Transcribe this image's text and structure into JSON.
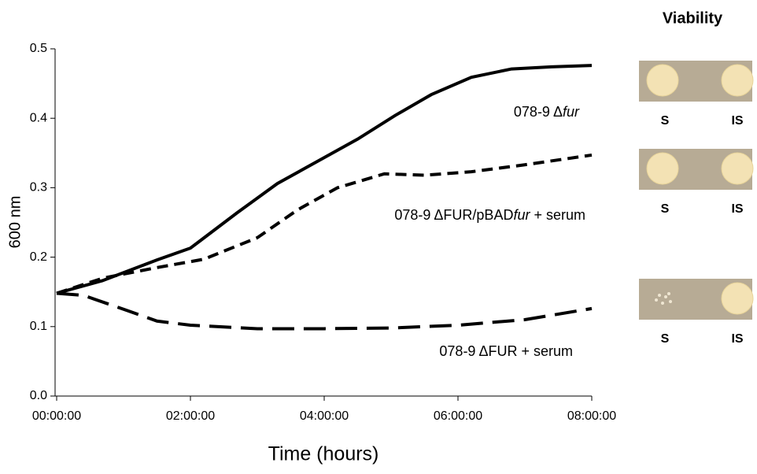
{
  "chart_data": {
    "type": "line",
    "xlabel": "Time (hours)",
    "ylabel": "600 nm",
    "xlim": [
      0,
      8
    ],
    "ylim": [
      0,
      0.5
    ],
    "xticks": [
      {
        "value": 0,
        "label": "00:00:00"
      },
      {
        "value": 2,
        "label": "02:00:00"
      },
      {
        "value": 4,
        "label": "04:00:00"
      },
      {
        "value": 6,
        "label": "06:00:00"
      },
      {
        "value": 8,
        "label": "08:00:00"
      }
    ],
    "yticks": [
      {
        "value": 0,
        "label": "0.0"
      },
      0.1,
      0.2,
      0.3,
      0.4,
      0.5
    ],
    "series": [
      {
        "label": [
          {
            "text": "078-9  Δ"
          },
          {
            "text": "fur",
            "italic": true
          }
        ],
        "color": "#000000",
        "dash": "solid",
        "x": [
          0,
          0.68,
          1.5,
          2.0,
          2.7,
          3.3,
          3.9,
          4.5,
          5.06,
          5.6,
          6.2,
          6.8,
          7.4,
          8
        ],
        "values": [
          0.148,
          0.166,
          0.196,
          0.213,
          0.264,
          0.306,
          0.338,
          0.37,
          0.404,
          0.434,
          0.459,
          0.471,
          0.474,
          0.476
        ]
      },
      {
        "label": [
          {
            "text": "078-9  ΔFUR/pBAD"
          },
          {
            "text": "fur",
            "italic": true
          },
          {
            "text": " + serum"
          }
        ],
        "color": "#000000",
        "dash": "short",
        "x": [
          0,
          0.7,
          1.5,
          2.2,
          3.0,
          3.6,
          4.2,
          4.9,
          5.5,
          6.2,
          7.0,
          8
        ],
        "values": [
          0.148,
          0.17,
          0.185,
          0.197,
          0.228,
          0.268,
          0.3,
          0.32,
          0.318,
          0.323,
          0.333,
          0.347
        ]
      },
      {
        "label": [
          {
            "text": "078-9  ΔFUR + serum"
          }
        ],
        "color": "#000000",
        "dash": "long",
        "x": [
          0,
          0.4,
          1.0,
          1.5,
          2.0,
          3.0,
          4.0,
          5.0,
          6.0,
          7.0,
          8
        ],
        "values": [
          0.148,
          0.145,
          0.125,
          0.108,
          0.102,
          0.097,
          0.097,
          0.098,
          0.102,
          0.11,
          0.126
        ]
      }
    ]
  },
  "viability": {
    "title": "Viability",
    "rows": [
      [
        "S",
        "IS"
      ],
      [
        "S",
        "IS"
      ],
      [
        "S",
        "IS"
      ]
    ]
  }
}
